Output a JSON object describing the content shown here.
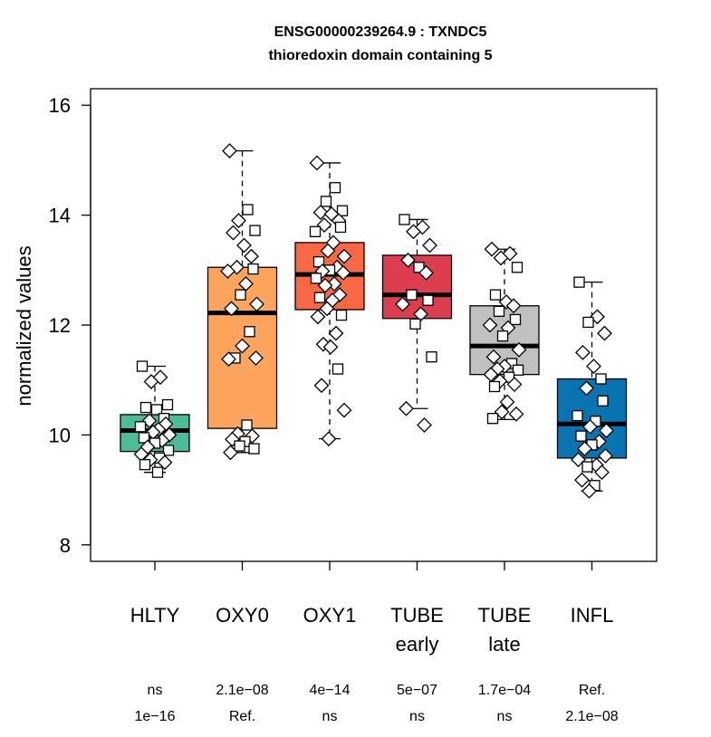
{
  "chart_data": {
    "type": "box",
    "title": "ENSG00000239264.9 : TXNDC5",
    "subtitle": "thioredoxin domain containing 5",
    "xlabel": "",
    "ylabel": "normalized values",
    "ylim": [
      7.7,
      16.3
    ],
    "yticks": [
      8,
      10,
      12,
      14,
      16
    ],
    "grid": false,
    "legend": "none",
    "groups": [
      {
        "name": "HLTY",
        "sublabel": "",
        "color": "#4dbb97",
        "stats": {
          "min": 9.32,
          "q1": 9.7,
          "median": 10.08,
          "q3": 10.37,
          "max": 11.25
        },
        "pvalues": [
          "ns",
          "1e−16"
        ],
        "points": [
          {
            "y": 11.25,
            "shape": "square"
          },
          {
            "y": 11.05,
            "shape": "diamond"
          },
          {
            "y": 10.97,
            "shape": "diamond"
          },
          {
            "y": 10.55,
            "shape": "square"
          },
          {
            "y": 10.5,
            "shape": "square"
          },
          {
            "y": 10.46,
            "shape": "square"
          },
          {
            "y": 10.3,
            "shape": "square"
          },
          {
            "y": 10.26,
            "shape": "diamond"
          },
          {
            "y": 10.2,
            "shape": "diamond"
          },
          {
            "y": 10.15,
            "shape": "square"
          },
          {
            "y": 10.1,
            "shape": "diamond"
          },
          {
            "y": 10.05,
            "shape": "diamond"
          },
          {
            "y": 10.0,
            "shape": "diamond"
          },
          {
            "y": 9.95,
            "shape": "square"
          },
          {
            "y": 9.9,
            "shape": "diamond"
          },
          {
            "y": 9.85,
            "shape": "square"
          },
          {
            "y": 9.78,
            "shape": "diamond"
          },
          {
            "y": 9.72,
            "shape": "square"
          },
          {
            "y": 9.65,
            "shape": "diamond"
          },
          {
            "y": 9.58,
            "shape": "square"
          },
          {
            "y": 9.55,
            "shape": "diamond"
          },
          {
            "y": 9.5,
            "shape": "diamond"
          },
          {
            "y": 9.46,
            "shape": "square"
          },
          {
            "y": 9.32,
            "shape": "square"
          }
        ]
      },
      {
        "name": "OXY0",
        "sublabel": "",
        "color": "#fda55e",
        "stats": {
          "min": 9.68,
          "q1": 10.12,
          "median": 12.22,
          "q3": 13.05,
          "max": 15.17
        },
        "pvalues": [
          "2.1e−08",
          "Ref."
        ],
        "points": [
          {
            "y": 15.17,
            "shape": "diamond"
          },
          {
            "y": 14.1,
            "shape": "square"
          },
          {
            "y": 13.9,
            "shape": "diamond"
          },
          {
            "y": 13.72,
            "shape": "square"
          },
          {
            "y": 13.68,
            "shape": "diamond"
          },
          {
            "y": 13.45,
            "shape": "diamond"
          },
          {
            "y": 13.25,
            "shape": "diamond"
          },
          {
            "y": 13.05,
            "shape": "diamond"
          },
          {
            "y": 13.02,
            "shape": "square"
          },
          {
            "y": 12.98,
            "shape": "diamond"
          },
          {
            "y": 12.75,
            "shape": "diamond"
          },
          {
            "y": 12.55,
            "shape": "square"
          },
          {
            "y": 12.38,
            "shape": "diamond"
          },
          {
            "y": 12.3,
            "shape": "diamond"
          },
          {
            "y": 11.88,
            "shape": "square"
          },
          {
            "y": 11.62,
            "shape": "diamond"
          },
          {
            "y": 11.4,
            "shape": "square"
          },
          {
            "y": 11.4,
            "shape": "diamond"
          },
          {
            "y": 11.38,
            "shape": "diamond"
          },
          {
            "y": 10.18,
            "shape": "square"
          },
          {
            "y": 10.02,
            "shape": "diamond"
          },
          {
            "y": 9.98,
            "shape": "diamond"
          },
          {
            "y": 9.92,
            "shape": "diamond"
          },
          {
            "y": 9.88,
            "shape": "square"
          },
          {
            "y": 9.8,
            "shape": "square"
          },
          {
            "y": 9.75,
            "shape": "square"
          },
          {
            "y": 9.68,
            "shape": "diamond"
          }
        ]
      },
      {
        "name": "OXY1",
        "sublabel": "",
        "color": "#f96845",
        "stats": {
          "min": 9.93,
          "q1": 12.28,
          "median": 12.92,
          "q3": 13.5,
          "max": 14.95
        },
        "pvalues": [
          "4e−14",
          "ns"
        ],
        "points": [
          {
            "y": 14.95,
            "shape": "diamond"
          },
          {
            "y": 14.5,
            "shape": "square"
          },
          {
            "y": 14.25,
            "shape": "square"
          },
          {
            "y": 14.08,
            "shape": "square"
          },
          {
            "y": 14.05,
            "shape": "diamond"
          },
          {
            "y": 14.02,
            "shape": "diamond"
          },
          {
            "y": 13.9,
            "shape": "diamond"
          },
          {
            "y": 13.82,
            "shape": "diamond"
          },
          {
            "y": 13.78,
            "shape": "square"
          },
          {
            "y": 13.7,
            "shape": "square"
          },
          {
            "y": 13.5,
            "shape": "diamond"
          },
          {
            "y": 13.35,
            "shape": "diamond"
          },
          {
            "y": 13.25,
            "shape": "diamond"
          },
          {
            "y": 13.15,
            "shape": "square"
          },
          {
            "y": 13.05,
            "shape": "diamond"
          },
          {
            "y": 13.0,
            "shape": "square"
          },
          {
            "y": 12.98,
            "shape": "diamond"
          },
          {
            "y": 12.95,
            "shape": "diamond"
          },
          {
            "y": 12.85,
            "shape": "square"
          },
          {
            "y": 12.75,
            "shape": "diamond"
          },
          {
            "y": 12.72,
            "shape": "diamond"
          },
          {
            "y": 12.55,
            "shape": "diamond"
          },
          {
            "y": 12.5,
            "shape": "square"
          },
          {
            "y": 12.45,
            "shape": "diamond"
          },
          {
            "y": 12.3,
            "shape": "diamond"
          },
          {
            "y": 12.18,
            "shape": "square"
          },
          {
            "y": 12.15,
            "shape": "diamond"
          },
          {
            "y": 11.85,
            "shape": "diamond"
          },
          {
            "y": 11.65,
            "shape": "diamond"
          },
          {
            "y": 11.6,
            "shape": "diamond"
          },
          {
            "y": 11.2,
            "shape": "square"
          },
          {
            "y": 10.9,
            "shape": "diamond"
          },
          {
            "y": 10.45,
            "shape": "diamond"
          },
          {
            "y": 9.93,
            "shape": "diamond"
          }
        ]
      },
      {
        "name": "TUBE",
        "sublabel": "early",
        "color": "#dc3d4f",
        "stats": {
          "min": 10.48,
          "q1": 12.12,
          "median": 12.55,
          "q3": 13.27,
          "max": 13.92
        },
        "pvalues": [
          "5e−07",
          "ns"
        ],
        "points": [
          {
            "y": 13.92,
            "shape": "square"
          },
          {
            "y": 13.78,
            "shape": "diamond"
          },
          {
            "y": 13.7,
            "shape": "diamond"
          },
          {
            "y": 13.45,
            "shape": "diamond"
          },
          {
            "y": 13.18,
            "shape": "diamond"
          },
          {
            "y": 13.05,
            "shape": "square"
          },
          {
            "y": 12.95,
            "shape": "diamond"
          },
          {
            "y": 12.55,
            "shape": "square"
          },
          {
            "y": 12.45,
            "shape": "square"
          },
          {
            "y": 12.38,
            "shape": "diamond"
          },
          {
            "y": 12.2,
            "shape": "diamond"
          },
          {
            "y": 12.02,
            "shape": "square"
          },
          {
            "y": 11.42,
            "shape": "square"
          },
          {
            "y": 10.48,
            "shape": "diamond"
          },
          {
            "y": 10.18,
            "shape": "diamond"
          }
        ]
      },
      {
        "name": "TUBE",
        "sublabel": "late",
        "color": "#c0c0c0",
        "stats": {
          "min": 10.28,
          "q1": 11.1,
          "median": 11.62,
          "q3": 12.35,
          "max": 13.38
        },
        "pvalues": [
          "1.7e−04",
          "ns"
        ],
        "points": [
          {
            "y": 13.38,
            "shape": "diamond"
          },
          {
            "y": 13.3,
            "shape": "diamond"
          },
          {
            "y": 13.22,
            "shape": "diamond"
          },
          {
            "y": 13.05,
            "shape": "square"
          },
          {
            "y": 12.55,
            "shape": "square"
          },
          {
            "y": 12.42,
            "shape": "diamond"
          },
          {
            "y": 12.35,
            "shape": "diamond"
          },
          {
            "y": 12.25,
            "shape": "square"
          },
          {
            "y": 12.1,
            "shape": "square"
          },
          {
            "y": 12.0,
            "shape": "diamond"
          },
          {
            "y": 11.95,
            "shape": "diamond"
          },
          {
            "y": 11.8,
            "shape": "square"
          },
          {
            "y": 11.55,
            "shape": "diamond"
          },
          {
            "y": 11.42,
            "shape": "diamond"
          },
          {
            "y": 11.3,
            "shape": "square"
          },
          {
            "y": 11.25,
            "shape": "diamond"
          },
          {
            "y": 11.2,
            "shape": "diamond"
          },
          {
            "y": 11.18,
            "shape": "square"
          },
          {
            "y": 11.1,
            "shape": "diamond"
          },
          {
            "y": 11.05,
            "shape": "square"
          },
          {
            "y": 10.98,
            "shape": "diamond"
          },
          {
            "y": 10.92,
            "shape": "diamond"
          },
          {
            "y": 10.88,
            "shape": "square"
          },
          {
            "y": 10.6,
            "shape": "diamond"
          },
          {
            "y": 10.42,
            "shape": "diamond"
          },
          {
            "y": 10.38,
            "shape": "diamond"
          },
          {
            "y": 10.3,
            "shape": "square"
          }
        ]
      },
      {
        "name": "INFL",
        "sublabel": "",
        "color": "#0a73b2",
        "stats": {
          "min": 8.98,
          "q1": 9.58,
          "median": 10.2,
          "q3": 11.02,
          "max": 12.78
        },
        "pvalues": [
          "Ref.",
          "2.1e−08"
        ],
        "points": [
          {
            "y": 12.78,
            "shape": "square"
          },
          {
            "y": 12.15,
            "shape": "diamond"
          },
          {
            "y": 12.05,
            "shape": "square"
          },
          {
            "y": 11.85,
            "shape": "diamond"
          },
          {
            "y": 11.5,
            "shape": "diamond"
          },
          {
            "y": 11.25,
            "shape": "diamond"
          },
          {
            "y": 11.02,
            "shape": "square"
          },
          {
            "y": 10.85,
            "shape": "diamond"
          },
          {
            "y": 10.62,
            "shape": "square"
          },
          {
            "y": 10.35,
            "shape": "square"
          },
          {
            "y": 10.25,
            "shape": "square"
          },
          {
            "y": 10.15,
            "shape": "diamond"
          },
          {
            "y": 10.08,
            "shape": "diamond"
          },
          {
            "y": 9.98,
            "shape": "square"
          },
          {
            "y": 9.88,
            "shape": "diamond"
          },
          {
            "y": 9.82,
            "shape": "square"
          },
          {
            "y": 9.75,
            "shape": "diamond"
          },
          {
            "y": 9.62,
            "shape": "diamond"
          },
          {
            "y": 9.55,
            "shape": "diamond"
          },
          {
            "y": 9.45,
            "shape": "diamond"
          },
          {
            "y": 9.42,
            "shape": "square"
          },
          {
            "y": 9.32,
            "shape": "diamond"
          },
          {
            "y": 9.18,
            "shape": "diamond"
          },
          {
            "y": 9.08,
            "shape": "square"
          },
          {
            "y": 8.98,
            "shape": "diamond"
          }
        ]
      }
    ]
  }
}
